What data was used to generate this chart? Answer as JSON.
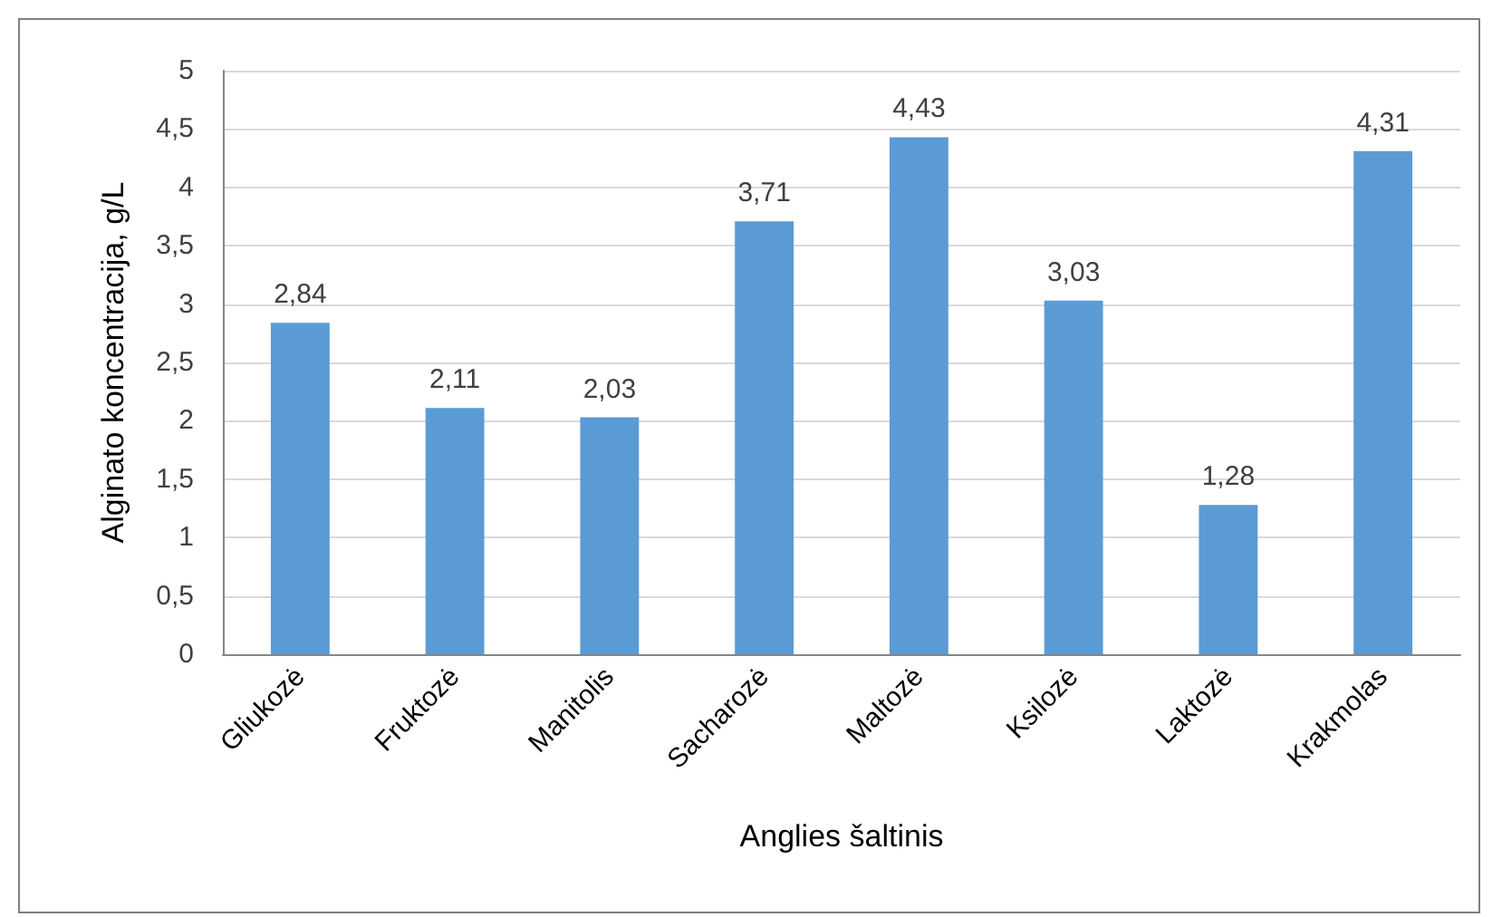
{
  "chart_data": {
    "type": "bar",
    "xlabel": "Anglies šaltinis",
    "ylabel": "Alginato koncentracija, g/L",
    "categories": [
      "Gliukozė",
      "Fruktozė",
      "Manitolis",
      "Sacharozė",
      "Maltozė",
      "Ksilozė",
      "Laktozė",
      "Krakmolas"
    ],
    "values": [
      2.84,
      2.11,
      2.03,
      3.71,
      4.43,
      3.03,
      1.28,
      4.31
    ],
    "value_labels": [
      "2,84",
      "2,11",
      "2,03",
      "3,71",
      "4,43",
      "3,03",
      "1,28",
      "4,31"
    ],
    "color": "#5b9bd5",
    "ylim": [
      0,
      5
    ],
    "yticks": [
      0,
      {
        "value": 0.5,
        "label": "0,5"
      },
      1,
      {
        "value": 1.5,
        "label": "1,5"
      },
      2,
      {
        "value": 2.5,
        "label": "2,5"
      },
      3,
      {
        "value": 3.5,
        "label": "3,5"
      },
      4,
      {
        "value": 4.5,
        "label": "4,5"
      },
      5
    ],
    "grid": "y"
  }
}
